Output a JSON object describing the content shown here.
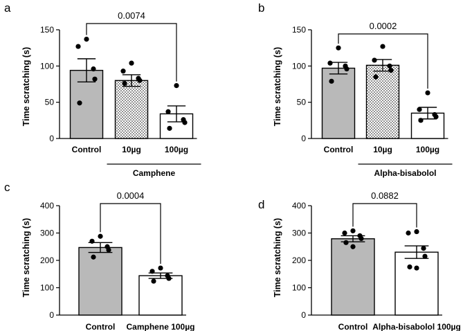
{
  "chart_data": [
    {
      "panel": "a",
      "type": "bar",
      "ylabel": "Time scratching (s)",
      "ylim": [
        0,
        150
      ],
      "yticks": [
        0,
        50,
        100,
        150
      ],
      "categories": [
        "Control",
        "10µg",
        "100µg"
      ],
      "values": [
        94,
        80,
        34
      ],
      "sem": [
        16,
        8,
        11
      ],
      "fills": [
        "gray",
        "dotted",
        "white"
      ],
      "points": [
        [
          137,
          127,
          96,
          82,
          49
        ],
        [
          104,
          93,
          83,
          80,
          76
        ],
        [
          73,
          37,
          26,
          22,
          14
        ]
      ],
      "group_label": "Camphene",
      "group_span": [
        1,
        2
      ],
      "comparison": {
        "from": 0,
        "to": 2,
        "p": "0.0074"
      }
    },
    {
      "panel": "b",
      "type": "bar",
      "ylabel": "Time scratching (s)",
      "ylim": [
        0,
        150
      ],
      "yticks": [
        0,
        50,
        100,
        150
      ],
      "categories": [
        "Control",
        "10µg",
        "100µg"
      ],
      "values": [
        97,
        101,
        35
      ],
      "sem": [
        8,
        8,
        8
      ],
      "fills": [
        "gray",
        "dotted",
        "white"
      ],
      "points": [
        [
          125,
          104,
          100,
          96,
          79
        ],
        [
          127,
          108,
          100,
          94,
          85
        ],
        [
          63,
          40,
          33,
          30,
          25
        ]
      ],
      "group_label": "Alpha-bisabolol",
      "group_span": [
        1,
        2
      ],
      "comparison": {
        "from": 0,
        "to": 2,
        "p": "0.0002"
      }
    },
    {
      "panel": "c",
      "type": "bar",
      "ylabel": "Time scratching (s)",
      "ylim": [
        0,
        400
      ],
      "yticks": [
        0,
        100,
        200,
        300,
        400
      ],
      "categories": [
        "Control",
        "Camphene 100µg"
      ],
      "values": [
        247,
        144
      ],
      "sem": [
        18,
        10
      ],
      "fills": [
        "gray",
        "white"
      ],
      "points": [
        [
          288,
          270,
          250,
          238,
          212
        ],
        [
          172,
          160,
          144,
          134,
          124
        ]
      ],
      "comparison": {
        "from": 0,
        "to": 1,
        "p": "0.0004"
      }
    },
    {
      "panel": "d",
      "type": "bar",
      "ylabel": "Time scratching (s)",
      "ylim": [
        0,
        400
      ],
      "yticks": [
        0,
        100,
        200,
        300,
        400
      ],
      "categories": [
        "Control",
        "Alpha-bisabolol 100µg"
      ],
      "values": [
        279,
        230
      ],
      "sem": [
        11,
        23
      ],
      "fills": [
        "gray",
        "white"
      ],
      "points": [
        [
          308,
          300,
          290,
          280,
          265,
          250
        ],
        [
          305,
          300,
          244,
          215,
          176,
          172
        ]
      ],
      "comparison": {
        "from": 0,
        "to": 1,
        "p": "0.0882"
      }
    }
  ]
}
